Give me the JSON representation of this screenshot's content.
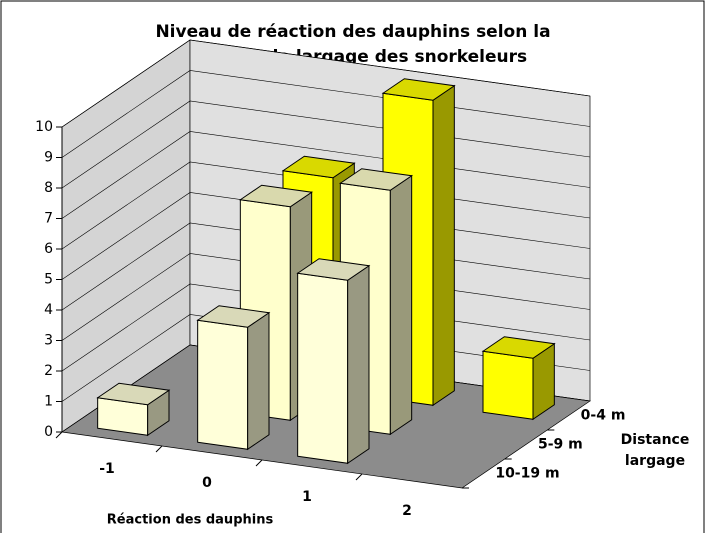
{
  "chart_data": {
    "type": "bar3d",
    "title": [
      "Niveau de réaction des dauphins selon la",
      "distance de largage des snorkeleurs"
    ],
    "x_axis_title": "Réaction des dauphins",
    "z_axis_title": [
      "Distance",
      "largage"
    ],
    "categories": [
      "-1",
      "0",
      "1",
      "2"
    ],
    "series": [
      {
        "name": "0-4 m",
        "color": "#ffff00",
        "values": [
          null,
          7,
          10,
          2
        ]
      },
      {
        "name": "5-9 m",
        "color": "#ffffcc",
        "values": [
          null,
          7,
          8,
          null
        ]
      },
      {
        "name": "10-19 m",
        "color": "#ffffd9",
        "values": [
          1,
          4,
          6,
          null
        ]
      }
    ],
    "ylim": [
      0,
      10
    ],
    "yticks": [
      0,
      1,
      2,
      3,
      4,
      5,
      6,
      7,
      8,
      9,
      10
    ],
    "grid": true
  }
}
